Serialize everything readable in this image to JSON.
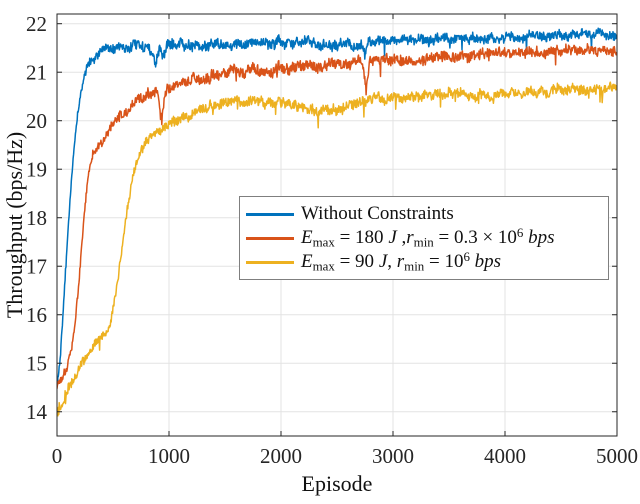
{
  "figure": {
    "background": "#ffffff",
    "axes_color": "#262626",
    "grid_color": "#e3e3e3",
    "legend_border_color": "#7f7f7f"
  },
  "chart_data": {
    "type": "line",
    "title": "",
    "xlabel": "Episode",
    "ylabel": "Throughput (bps/Hz)",
    "xlim": [
      0,
      5000
    ],
    "ylim": [
      13.5,
      22.2
    ],
    "xticks": [
      0,
      1000,
      2000,
      3000,
      4000,
      5000
    ],
    "yticks": [
      14,
      15,
      16,
      17,
      18,
      19,
      20,
      21,
      22
    ],
    "grid": true,
    "legend_position": "center",
    "series": [
      {
        "id": "without-constraints",
        "name": "Without Constraints",
        "color": "#0072BD",
        "anchors": [
          [
            0,
            14.55,
            0.1
          ],
          [
            25,
            15.0,
            0.08
          ],
          [
            60,
            16.3,
            0.07
          ],
          [
            100,
            17.8,
            0.07
          ],
          [
            140,
            19.1,
            0.08
          ],
          [
            180,
            20.1,
            0.08
          ],
          [
            220,
            20.7,
            0.09
          ],
          [
            270,
            21.1,
            0.1
          ],
          [
            330,
            21.3,
            0.1
          ],
          [
            420,
            21.45,
            0.11
          ],
          [
            550,
            21.5,
            0.11
          ],
          [
            700,
            21.55,
            0.12
          ],
          [
            850,
            21.45,
            0.13
          ],
          [
            1000,
            21.55,
            0.12
          ],
          [
            1300,
            21.55,
            0.12
          ],
          [
            1700,
            21.6,
            0.12
          ],
          [
            2200,
            21.6,
            0.12
          ],
          [
            2700,
            21.55,
            0.12
          ],
          [
            2900,
            21.65,
            0.11
          ],
          [
            3300,
            21.68,
            0.11
          ],
          [
            3700,
            21.7,
            0.11
          ],
          [
            4100,
            21.73,
            0.11
          ],
          [
            4600,
            21.77,
            0.11
          ],
          [
            5000,
            21.8,
            0.11
          ]
        ],
        "spikes": [
          [
            880,
            0.3,
            55
          ],
          [
            950,
            0.35,
            30
          ],
          [
            2750,
            0.3,
            30
          ]
        ]
      },
      {
        "id": "emax-180",
        "name": "E_max = 180 J ,r_min = 0.3 × 10^6 bps",
        "color": "#D95319",
        "anchors": [
          [
            0,
            14.55,
            0.12
          ],
          [
            40,
            14.7,
            0.1
          ],
          [
            90,
            14.95,
            0.09
          ],
          [
            130,
            15.3,
            0.09
          ],
          [
            160,
            15.8,
            0.08
          ],
          [
            200,
            16.8,
            0.08
          ],
          [
            240,
            18.0,
            0.08
          ],
          [
            280,
            18.9,
            0.08
          ],
          [
            320,
            19.25,
            0.09
          ],
          [
            380,
            19.5,
            0.1
          ],
          [
            430,
            19.65,
            0.1
          ],
          [
            500,
            19.95,
            0.1
          ],
          [
            630,
            20.2,
            0.11
          ],
          [
            750,
            20.45,
            0.12
          ],
          [
            850,
            20.6,
            0.13
          ],
          [
            930,
            20.55,
            0.16
          ],
          [
            1020,
            20.7,
            0.13
          ],
          [
            1150,
            20.8,
            0.13
          ],
          [
            1400,
            20.95,
            0.13
          ],
          [
            1700,
            21.05,
            0.13
          ],
          [
            2000,
            21.1,
            0.13
          ],
          [
            2300,
            21.15,
            0.13
          ],
          [
            2600,
            21.2,
            0.13
          ],
          [
            2900,
            21.25,
            0.12
          ],
          [
            3200,
            21.3,
            0.12
          ],
          [
            3600,
            21.35,
            0.12
          ],
          [
            4000,
            21.4,
            0.12
          ],
          [
            4400,
            21.42,
            0.12
          ],
          [
            4800,
            21.45,
            0.12
          ],
          [
            5000,
            21.45,
            0.12
          ]
        ],
        "spikes": [
          [
            935,
            0.55,
            50
          ],
          [
            2760,
            0.7,
            35
          ]
        ]
      },
      {
        "id": "emax-90",
        "name": "E_max = 90 J, r_min = 10^6 bps",
        "color": "#EDB120",
        "anchors": [
          [
            0,
            13.95,
            0.18
          ],
          [
            60,
            14.25,
            0.15
          ],
          [
            120,
            14.55,
            0.13
          ],
          [
            180,
            14.8,
            0.12
          ],
          [
            240,
            15.05,
            0.11
          ],
          [
            300,
            15.25,
            0.1
          ],
          [
            360,
            15.45,
            0.1
          ],
          [
            430,
            15.6,
            0.1
          ],
          [
            480,
            15.8,
            0.09
          ],
          [
            520,
            16.35,
            0.08
          ],
          [
            560,
            17.0,
            0.08
          ],
          [
            600,
            17.7,
            0.08
          ],
          [
            640,
            18.35,
            0.08
          ],
          [
            680,
            18.9,
            0.09
          ],
          [
            720,
            19.25,
            0.09
          ],
          [
            780,
            19.5,
            0.1
          ],
          [
            850,
            19.7,
            0.1
          ],
          [
            930,
            19.85,
            0.11
          ],
          [
            1050,
            20.0,
            0.11
          ],
          [
            1200,
            20.15,
            0.12
          ],
          [
            1350,
            20.3,
            0.12
          ],
          [
            1500,
            20.4,
            0.12
          ],
          [
            1700,
            20.45,
            0.12
          ],
          [
            1900,
            20.4,
            0.12
          ],
          [
            2100,
            20.35,
            0.12
          ],
          [
            2300,
            20.25,
            0.12
          ],
          [
            2450,
            20.2,
            0.12
          ],
          [
            2650,
            20.35,
            0.12
          ],
          [
            2850,
            20.45,
            0.12
          ],
          [
            3100,
            20.45,
            0.12
          ],
          [
            3400,
            20.55,
            0.12
          ],
          [
            3700,
            20.5,
            0.12
          ],
          [
            4000,
            20.55,
            0.12
          ],
          [
            4300,
            20.6,
            0.12
          ],
          [
            4600,
            20.65,
            0.12
          ],
          [
            5000,
            20.65,
            0.12
          ]
        ],
        "spikes": []
      }
    ]
  },
  "legend": {
    "entries": [
      {
        "series_id": "without-constraints",
        "segments": [
          {
            "t": "Without Constraints",
            "s": ""
          }
        ]
      },
      {
        "series_id": "emax-180",
        "segments": [
          {
            "t": "E",
            "s": "i"
          },
          {
            "t": "max",
            "s": "sub"
          },
          {
            "t": " = 180 ",
            "s": ""
          },
          {
            "t": "J",
            "s": "i"
          },
          {
            "t": " ,",
            "s": ""
          },
          {
            "t": "r",
            "s": "i"
          },
          {
            "t": "min",
            "s": "sub"
          },
          {
            "t": " = 0.3 × 10",
            "s": ""
          },
          {
            "t": "6",
            "s": "sup"
          },
          {
            "t": " ",
            "s": ""
          },
          {
            "t": "bps",
            "s": "i"
          }
        ]
      },
      {
        "series_id": "emax-90",
        "segments": [
          {
            "t": "E",
            "s": "i"
          },
          {
            "t": "max",
            "s": "sub"
          },
          {
            "t": " = 90 ",
            "s": ""
          },
          {
            "t": "J",
            "s": "i"
          },
          {
            "t": ", ",
            "s": ""
          },
          {
            "t": "r",
            "s": "i"
          },
          {
            "t": "min",
            "s": "sub"
          },
          {
            "t": " = 10",
            "s": ""
          },
          {
            "t": "6",
            "s": "sup"
          },
          {
            "t": " ",
            "s": ""
          },
          {
            "t": "bps",
            "s": "i"
          }
        ]
      }
    ]
  }
}
